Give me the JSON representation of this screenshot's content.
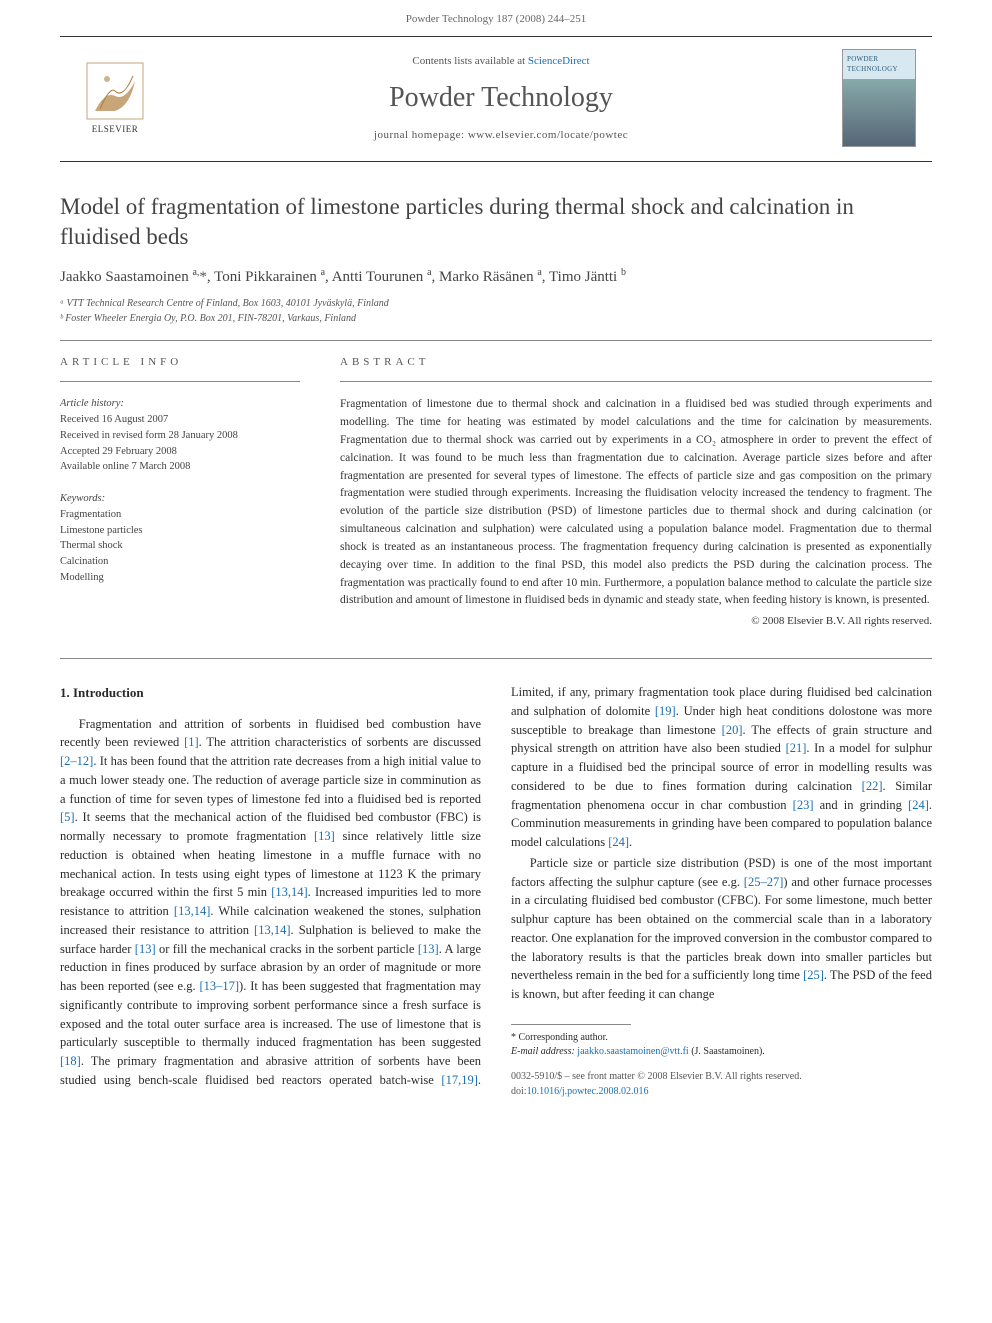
{
  "header": {
    "citation": "Powder Technology 187 (2008) 244–251"
  },
  "banner": {
    "contents_prefix": "Contents lists available at ",
    "contents_link": "ScienceDirect",
    "journal": "Powder Technology",
    "homepage_prefix": "journal homepage: ",
    "homepage": "www.elsevier.com/locate/powtec",
    "publisher": "ELSEVIER",
    "cover_label": "POWDER TECHNOLOGY"
  },
  "article": {
    "title": "Model of fragmentation of limestone particles during thermal shock and calcination in fluidised beds",
    "authors_html": "Jaakko Saastamoinen <sup>a,</sup><span class='star'>*</span>, Toni Pikkarainen <sup>a</sup>, Antti Tourunen <sup>a</sup>, Marko Räsänen <sup>a</sup>, Timo Jäntti <sup>b</sup>",
    "affiliations": [
      "ᵃ VTT Technical Research Centre of Finland, Box 1603, 40101 Jyväskylä, Finland",
      "ᵇ Foster Wheeler Energia Oy, P.O. Box 201, FIN-78201, Varkaus, Finland"
    ]
  },
  "info": {
    "heading": "ARTICLE INFO",
    "history_label": "Article history:",
    "history": [
      "Received 16 August 2007",
      "Received in revised form 28 January 2008",
      "Accepted 29 February 2008",
      "Available online 7 March 2008"
    ],
    "keywords_label": "Keywords:",
    "keywords": [
      "Fragmentation",
      "Limestone particles",
      "Thermal shock",
      "Calcination",
      "Modelling"
    ]
  },
  "abstract": {
    "heading": "ABSTRACT",
    "text": "Fragmentation of limestone due to thermal shock and calcination in a fluidised bed was studied through experiments and modelling. The time for heating was estimated by model calculations and the time for calcination by measurements. Fragmentation due to thermal shock was carried out by experiments in a CO₂ atmosphere in order to prevent the effect of calcination. It was found to be much less than fragmentation due to calcination. Average particle sizes before and after fragmentation are presented for several types of limestone. The effects of particle size and gas composition on the primary fragmentation were studied through experiments. Increasing the fluidisation velocity increased the tendency to fragment. The evolution of the particle size distribution (PSD) of limestone particles due to thermal shock and during calcination (or simultaneous calcination and sulphation) were calculated using a population balance model. Fragmentation due to thermal shock is treated as an instantaneous process. The fragmentation frequency during calcination is presented as exponentially decaying over time. In addition to the final PSD, this model also predicts the PSD during the calcination process. The fragmentation was practically found to end after 10 min. Furthermore, a population balance method to calculate the particle size distribution and amount of limestone in fluidised beds in dynamic and steady state, when feeding history is known, is presented.",
    "copyright": "© 2008 Elsevier B.V. All rights reserved."
  },
  "body": {
    "section_heading": "1. Introduction",
    "para1_a": "Fragmentation and attrition of sorbents in fluidised bed combustion have recently been reviewed ",
    "cite1": "[1]",
    "para1_b": ". The attrition characteristics of sorbents are discussed ",
    "cite2": "[2–12]",
    "para1_c": ". It has been found that the attrition rate decreases from a high initial value to a much lower steady one. The reduction of average particle size in comminution as a function of time for seven types of limestone fed into a fluidised bed is reported ",
    "cite3": "[5]",
    "para1_d": ". It seems that the mechanical action of the fluidised bed combustor (FBC) is normally necessary to promote fragmentation ",
    "cite4": "[13]",
    "para1_e": " since relatively little size reduction is obtained when heating limestone in a muffle furnace with no mechanical action. In tests using eight types of limestone at 1123 K the primary breakage occurred within the first 5 min ",
    "cite5": "[13,14]",
    "para1_f": ". Increased impurities led to more resistance to attrition ",
    "cite6": "[13,14]",
    "para1_g": ". While calcination weakened the stones, sulphation increased their resistance to attrition ",
    "cite7": "[13,14]",
    "para1_h": ". Sulphation is believed to make the surface harder ",
    "cite8": "[13]",
    "para1_i": " or fill the mechanical cracks in the sorbent particle ",
    "cite9": "[13]",
    "para1_j": ". A large reduction in fines produced by surface abrasion by an order of magnitude or more has been reported (see e.g. ",
    "cite10": "[13–17]",
    "para1_k": "). It has been suggested that fragmentation may significantly contribute to ",
    "para2_a": "improving sorbent performance since a fresh surface is exposed and the total outer surface area is increased. The use of limestone that is particularly susceptible to thermally induced fragmentation has been suggested ",
    "cite11": "[18]",
    "para2_b": ". The primary fragmentation and abrasive attrition of sorbents have been studied using bench-scale fluidised bed reactors operated batch-wise ",
    "cite12": "[17,19]",
    "para2_c": ". Limited, if any, primary fragmentation took place during fluidised bed calcination and sulphation of dolomite ",
    "cite13": "[19]",
    "para2_d": ". Under high heat conditions dolostone was more susceptible to breakage than limestone ",
    "cite14": "[20]",
    "para2_e": ". The effects of grain structure and physical strength on attrition have also been studied ",
    "cite15": "[21]",
    "para2_f": ". In a model for sulphur capture in a fluidised bed the principal source of error in modelling results was considered to be due to fines formation during calcination ",
    "cite16": "[22]",
    "para2_g": ". Similar fragmentation phenomena occur in char combustion ",
    "cite17": "[23]",
    "para2_h": " and in grinding ",
    "cite18": "[24]",
    "para2_i": ". Comminution measurements in grinding have been compared to population balance model calculations ",
    "cite19": "[24]",
    "para2_j": ".",
    "para3_a": "Particle size or particle size distribution (PSD) is one of the most important factors affecting the sulphur capture (see e.g. ",
    "cite20": "[25–27]",
    "para3_b": ") and other furnace processes in a circulating fluidised bed combustor (CFBC). For some limestone, much better sulphur capture has been obtained on the commercial scale than in a laboratory reactor. One explanation for the improved conversion in the combustor compared to the laboratory results is that the particles break down into smaller particles but nevertheless remain in the bed for a sufficiently long time ",
    "cite21": "[25]",
    "para3_c": ". The PSD of the feed is known, but after feeding it can change"
  },
  "footnotes": {
    "corresp": "* Corresponding author.",
    "email_label": "E-mail address: ",
    "email": "jaakko.saastamoinen@vtt.fi",
    "email_suffix": " (J. Saastamoinen)."
  },
  "footer": {
    "line1": "0032-5910/$ – see front matter © 2008 Elsevier B.V. All rights reserved.",
    "doi_prefix": "doi:",
    "doi": "10.1016/j.powtec.2008.02.016"
  },
  "colors": {
    "link": "#1a6fb0",
    "text": "#333333",
    "rule": "#888888"
  }
}
